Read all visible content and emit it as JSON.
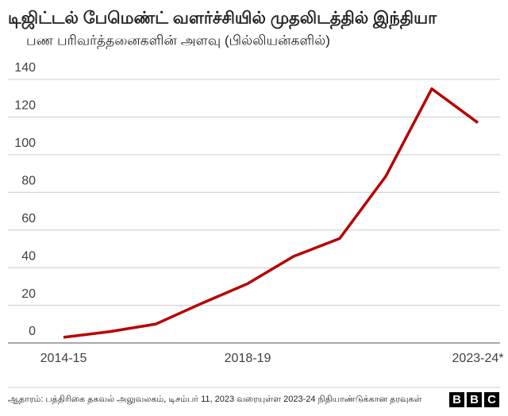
{
  "chart_data": {
    "type": "line",
    "title": "டிஜிட்டல் பேமெண்ட் வளர்ச்சியில் முதலிடத்தில் இந்தியா",
    "subtitle": "பண பரிவர்த்தனைகளின் அளவு (பில்லியன்களில்)",
    "categories": [
      "2014-15",
      null,
      null,
      null,
      "2018-19",
      null,
      null,
      null,
      null,
      "2023-24*"
    ],
    "series": [
      {
        "color": "#b80000",
        "values": [
          3,
          6,
          10,
          21,
          31.5,
          46,
          55.5,
          88.5,
          135,
          117
        ]
      }
    ],
    "ylim": [
      0,
      140
    ],
    "yticks": [
      0,
      20,
      40,
      60,
      80,
      100,
      120,
      140
    ],
    "grid": true,
    "source": "ஆதாரம்: பத்திரிகை தகவல் அலுவலகம், டிசம்பர் 11, 2023 வரையுள்ள 2023-24 நிதியாண்டுக்கான தரவுகள்",
    "logo": [
      "B",
      "B",
      "C"
    ]
  }
}
